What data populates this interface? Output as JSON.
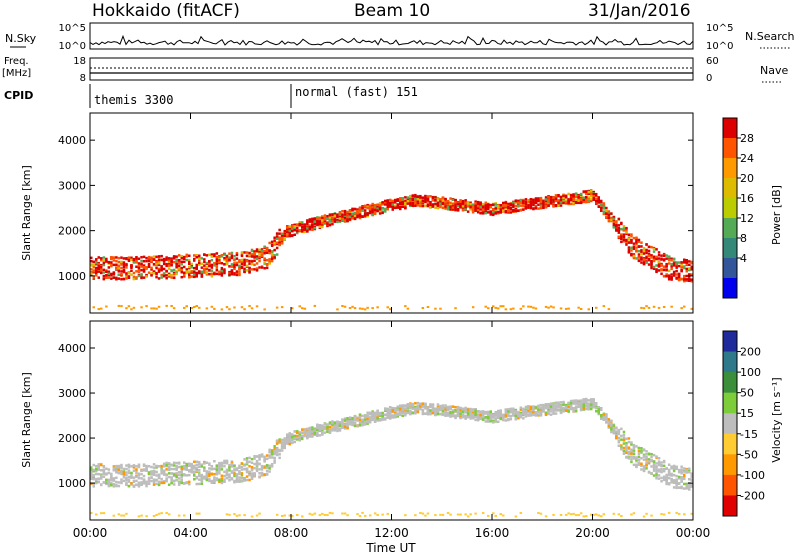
{
  "header": {
    "station": "Hokkaido (fitACF)",
    "beam": "Beam 10",
    "date": "31/Jan/2016"
  },
  "nsky_panel": {
    "left_label": "N.Sky",
    "left_ticks": [
      "10^5",
      "10^0"
    ],
    "right_ticks": [
      "10^5",
      "10^0"
    ],
    "right_label": "N.Search"
  },
  "freq_panel": {
    "left_label_line1": "Freq.",
    "left_label_line2": "[MHz]",
    "left_ticks": [
      "18",
      "8"
    ],
    "right_ticks": [
      "60",
      "0"
    ],
    "right_label": "Nave"
  },
  "cpid_panel": {
    "label": "CPID",
    "modes": [
      {
        "name": "themis 3300",
        "start_hour": 0
      },
      {
        "name": "normal (fast) 151",
        "start_hour": 8
      }
    ]
  },
  "chart_data": [
    {
      "type": "heatmap",
      "panel": "power",
      "title": "",
      "xlabel": "Time UT",
      "ylabel": "Slant Range [km]",
      "x_range_hours": [
        0,
        24
      ],
      "xtick_labels": [
        "00:00",
        "04:00",
        "08:00",
        "12:00",
        "16:00",
        "20:00",
        "00:00"
      ],
      "ylim": [
        180,
        4600
      ],
      "yticks": [
        1000,
        2000,
        3000,
        4000
      ],
      "colorbar": {
        "label": "Power [dB]",
        "tick_labels": [
          "28",
          "24",
          "20",
          "16",
          "12",
          "8",
          "4"
        ],
        "colors": [
          "#dd0000",
          "#ff5500",
          "#ff9900",
          "#ddbb00",
          "#bbcc00",
          "#55aa55",
          "#338877",
          "#335599",
          "#0000ee"
        ]
      },
      "echo_bands_km": [
        {
          "x": [
            0,
            2,
            4,
            6,
            7,
            7.8,
            9,
            12,
            13,
            16,
            20,
            21.5,
            23,
            24
          ],
          "y": [
            1200,
            1200,
            1250,
            1300,
            1450,
            2000,
            2200,
            2600,
            2700,
            2500,
            2800,
            1700,
            1200,
            1100
          ]
        }
      ]
    },
    {
      "type": "heatmap",
      "panel": "velocity",
      "title": "",
      "xlabel": "Time UT",
      "ylabel": "Slant Range [km]",
      "x_range_hours": [
        0,
        24
      ],
      "xtick_labels": [
        "00:00",
        "04:00",
        "08:00",
        "12:00",
        "16:00",
        "20:00",
        "00:00"
      ],
      "ylim": [
        180,
        4600
      ],
      "yticks": [
        1000,
        2000,
        3000,
        4000
      ],
      "colorbar": {
        "label": "Velocity [m s⁻¹]",
        "tick_labels": [
          "200",
          "100",
          "50",
          "15",
          "-15",
          "-50",
          "-100",
          "-200"
        ],
        "colors": [
          "#1f2b9a",
          "#2e7a8a",
          "#3b8f3b",
          "#7dcc3a",
          "#bdbdbd",
          "#ffcc33",
          "#ff9900",
          "#ff5500",
          "#e00000"
        ]
      }
    }
  ]
}
